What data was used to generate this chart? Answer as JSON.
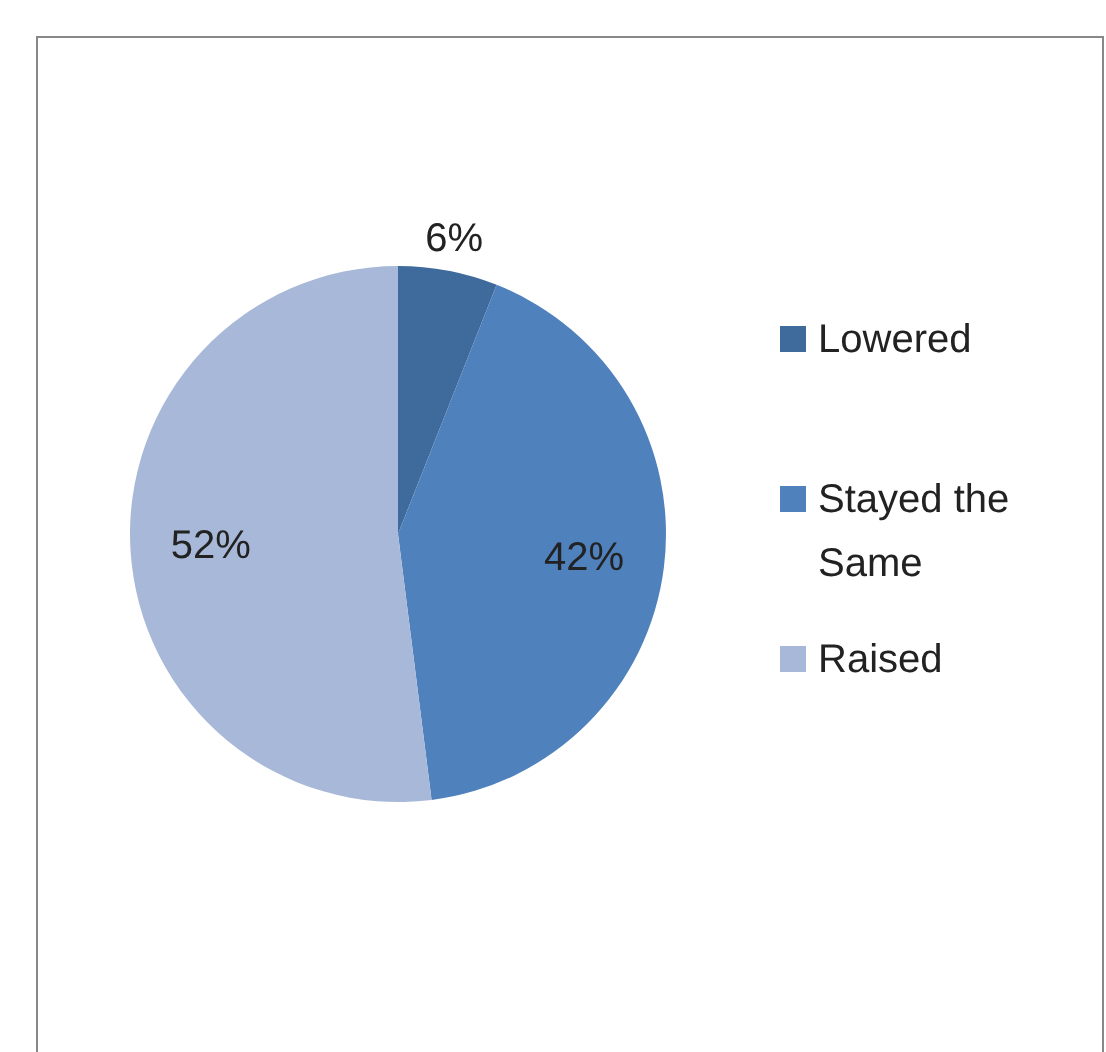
{
  "chart_data": {
    "type": "pie",
    "categories": [
      "Lowered",
      "Stayed the Same",
      "Raised"
    ],
    "values": [
      6,
      42,
      52
    ],
    "value_labels": [
      "6%",
      "42%",
      "52%"
    ],
    "colors": [
      "#3e6a9c",
      "#4f81bd",
      "#a8b8d8"
    ],
    "legend": "right"
  }
}
